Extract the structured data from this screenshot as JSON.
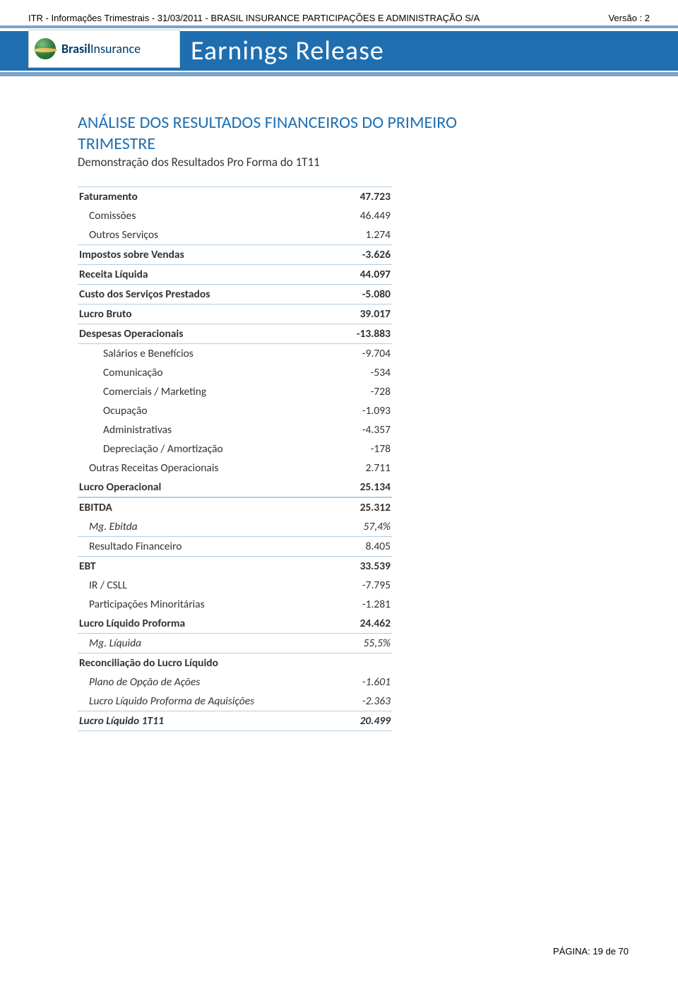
{
  "topline": {
    "left": "ITR - Informações Trimestrais - 31/03/2011 - BRASIL INSURANCE PARTICIPAÇÕES E ADMINISTRAÇÃO S/A",
    "right": "Versão : 2"
  },
  "banner": {
    "title": "Earnings Release"
  },
  "logo": {
    "bold": "Brasil",
    "rest": "Insurance"
  },
  "section": {
    "title_line1": "ANÁLISE DOS RESULTADOS FINANCEIROS DO PRIMEIRO",
    "title_line2": "TRIMESTRE",
    "subtitle": "Demonstração dos Resultados Pro Forma do 1T11"
  },
  "table": {
    "rows": [
      {
        "label": "Faturamento",
        "value": "47.723",
        "bold": true,
        "top": true
      },
      {
        "label": "Comissões",
        "value": "46.449",
        "indent": 1
      },
      {
        "label": "Outros Serviços",
        "value": "1.274",
        "indent": 1,
        "rule": true
      },
      {
        "label": "Impostos sobre Vendas",
        "value": "-3.626",
        "bold": true,
        "rule": true
      },
      {
        "label": "Receita Líquida",
        "value": "44.097",
        "bold": true,
        "rule": true
      },
      {
        "label": "Custo dos Serviços Prestados",
        "value": "-5.080",
        "bold": true,
        "rule": true
      },
      {
        "label": "Lucro Bruto",
        "value": "39.017",
        "bold": true,
        "rule": true
      },
      {
        "label": "Despesas Operacionais",
        "value": "-13.883",
        "bold": true,
        "rule": true
      },
      {
        "label": "Salários e Benefícios",
        "value": "-9.704",
        "indent": 2
      },
      {
        "label": "Comunicação",
        "value": "-534",
        "indent": 2
      },
      {
        "label": "Comerciais / Marketing",
        "value": "-728",
        "indent": 2
      },
      {
        "label": "Ocupação",
        "value": "-1.093",
        "indent": 2
      },
      {
        "label": "Administrativas",
        "value": "-4.357",
        "indent": 2
      },
      {
        "label": "Depreciação / Amortização",
        "value": "-178",
        "indent": 2
      },
      {
        "label": "Outras Receitas Operacionais",
        "value": "2.711",
        "indent": 1
      },
      {
        "label": "Lucro Operacional",
        "value": "25.134",
        "bold": true,
        "rule": true
      },
      {
        "label": "EBITDA",
        "value": "25.312",
        "bold": true,
        "top": true
      },
      {
        "label": "Mg. Ebitda",
        "value": "57,4%",
        "indent": 1,
        "italic": true,
        "rule": true
      },
      {
        "label": "Resultado Financeiro",
        "value": "8.405",
        "indent": 1,
        "rule": true
      },
      {
        "label": "EBT",
        "value": "33.539",
        "bold": true
      },
      {
        "label": "IR / CSLL",
        "value": "-7.795",
        "indent": 1
      },
      {
        "label": "Participações Minoritárias",
        "value": "-1.281",
        "indent": 1
      },
      {
        "label": "Lucro Líquido Proforma",
        "value": "24.462",
        "bold": true,
        "rule": true
      },
      {
        "label": "Mg. Líquida",
        "value": "55,5%",
        "indent": 1,
        "italic": true,
        "rule": true
      },
      {
        "label": "Reconciliação do Lucro Líquido",
        "value": "",
        "bold": true
      },
      {
        "label": "Plano de Opção de Ações",
        "value": "-1.601",
        "indent": 1,
        "italic": true
      },
      {
        "label": "Lucro Líquido Proforma de Aquisições",
        "value": "-2.363",
        "indent": 1,
        "italic": true
      },
      {
        "label": "Lucro Líquido 1T11",
        "value": "20.499",
        "bold": true,
        "italic": true,
        "top": true,
        "rule": true
      }
    ]
  },
  "footer": {
    "text": "PÁGINA: 19 de 70"
  },
  "colors": {
    "brand_blue": "#1f6fb0",
    "light_blue": "#7ba4c9",
    "rule_blue": "#b3cde3"
  }
}
